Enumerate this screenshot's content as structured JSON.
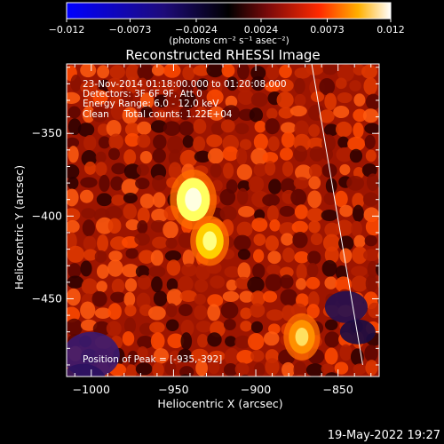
{
  "colorbar": {
    "ticks": [
      -0.012,
      -0.0073,
      -0.0024,
      0.0024,
      0.0073,
      0.012
    ],
    "tick_labels": [
      "-0.012",
      "-0.0073",
      "-0.0024",
      "0.0024",
      "0.0073",
      "0.012"
    ],
    "unit_label": "(photons cm⁻² s⁻¹ asec⁻²)",
    "range": [
      -0.012,
      0.012
    ]
  },
  "chart_data": {
    "type": "heatmap",
    "title": "Reconstructed RHESSI Image",
    "xlabel": "Heliocentric X (arcsec)",
    "ylabel": "Heliocentric Y (arcsec)",
    "xlim": [
      -1015,
      -825
    ],
    "ylim": [
      -497,
      -308
    ],
    "xticks": [
      -1000,
      -950,
      -900,
      -850
    ],
    "yticks": [
      -450,
      -400,
      -350
    ],
    "xtick_labels": [
      "−1000",
      "−950",
      "−900",
      "−850"
    ],
    "ytick_labels": [
      "−450",
      "−400",
      "−350"
    ],
    "colormap": "hot (blue/black negative, red/yellow/white positive)",
    "peak_x": -935,
    "peak_y": -392,
    "limb_line": [
      [
        -866,
        -308
      ],
      [
        -835,
        -490
      ]
    ],
    "sources": [
      {
        "x": -938,
        "y": -390,
        "value": 0.012
      },
      {
        "x": -928,
        "y": -415,
        "value": 0.0085
      },
      {
        "x": -872,
        "y": -473,
        "value": 0.0075
      }
    ],
    "annotations": [
      "23-Nov-2014 01:18:00.000 to 01:20:08.000",
      "Detectors: 3F 6F 9F, Att 0",
      "Energy Range: 6.0 - 12.0 keV",
      "Clean     Total counts: 1.22E+04",
      "Position of Peak = [-935,-392]"
    ]
  },
  "timestamp": "19-May-2022 19:27"
}
